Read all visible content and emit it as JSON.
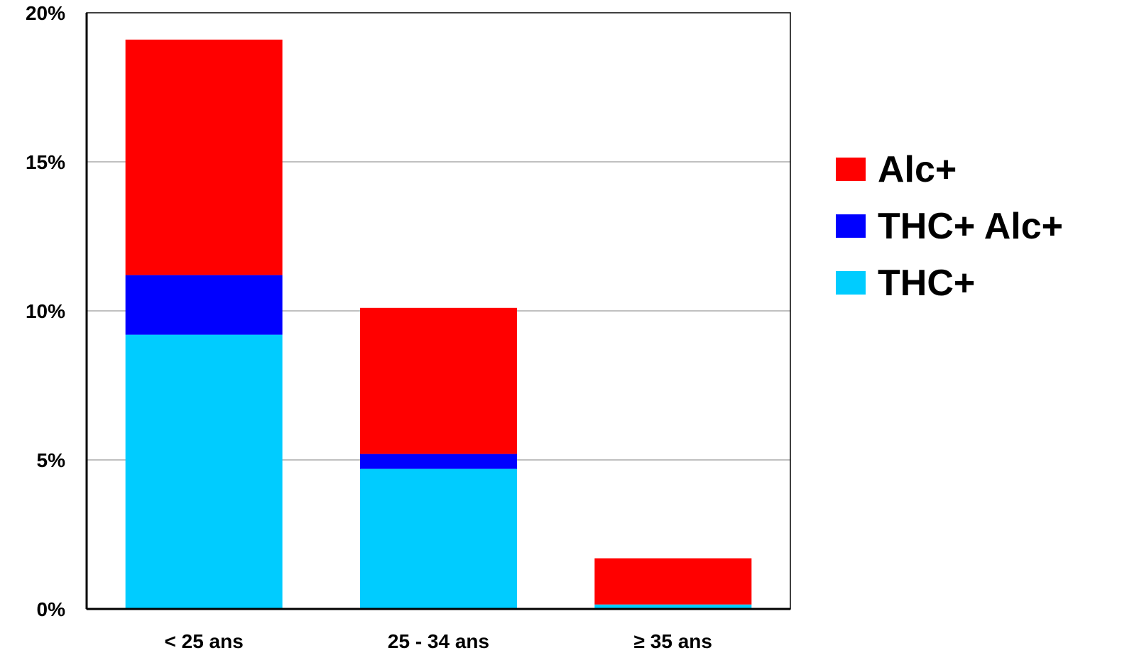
{
  "chart_data": {
    "type": "bar",
    "stacked": true,
    "categories": [
      "< 25 ans",
      "25 - 34 ans",
      "≥ 35 ans"
    ],
    "series": [
      {
        "name": "THC+",
        "color": "#00ccff",
        "values": [
          9.2,
          4.7,
          0.15
        ]
      },
      {
        "name": "THC+ Alc+",
        "color": "#0000ff",
        "values": [
          2.0,
          0.5,
          0.0
        ]
      },
      {
        "name": "Alc+",
        "color": "#ff0000",
        "values": [
          7.9,
          4.9,
          1.55
        ]
      }
    ],
    "ylim": [
      0,
      20
    ],
    "yticks": [
      0,
      5,
      10,
      15,
      20
    ],
    "ytick_labels": [
      "0%",
      "5%",
      "10%",
      "15%",
      "20%"
    ],
    "legend_order": [
      "Alc+",
      "THC+ Alc+",
      "THC+"
    ],
    "legend_position": "right",
    "grid": true
  }
}
